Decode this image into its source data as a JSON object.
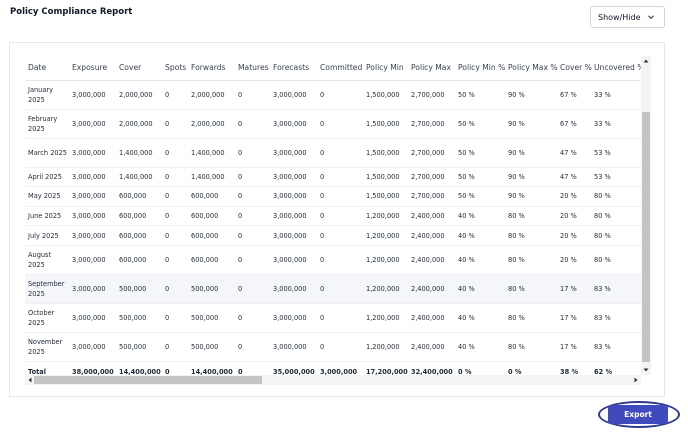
{
  "page": {
    "title": "Policy Compliance Report"
  },
  "controls": {
    "show_hide_label": "Show/Hide",
    "export_label": "Export"
  },
  "table": {
    "columns": [
      "Date",
      "Exposure",
      "Cover",
      "Spots",
      "Forwards",
      "Matures",
      "Forecasts",
      "Committed",
      "Policy Min",
      "Policy Max",
      "Policy Min %",
      "Policy Max %",
      "Cover %",
      "Uncovered %"
    ],
    "rows": [
      [
        "January 2025",
        "3,000,000",
        "2,000,000",
        "0",
        "2,000,000",
        "0",
        "3,000,000",
        "0",
        "1,500,000",
        "2,700,000",
        "50 %",
        "90 %",
        "67 %",
        "33 %"
      ],
      [
        "February 2025",
        "3,000,000",
        "2,000,000",
        "0",
        "2,000,000",
        "0",
        "3,000,000",
        "0",
        "1,500,000",
        "2,700,000",
        "50 %",
        "90 %",
        "67 %",
        "33 %"
      ],
      [
        "March 2025",
        "3,000,000",
        "1,400,000",
        "0",
        "1,400,000",
        "0",
        "3,000,000",
        "0",
        "1,500,000",
        "2,700,000",
        "50 %",
        "90 %",
        "47 %",
        "53 %"
      ],
      [
        "April 2025",
        "3,000,000",
        "1,400,000",
        "0",
        "1,400,000",
        "0",
        "3,000,000",
        "0",
        "1,500,000",
        "2,700,000",
        "50 %",
        "90 %",
        "47 %",
        "53 %"
      ],
      [
        "May 2025",
        "3,000,000",
        "600,000",
        "0",
        "600,000",
        "0",
        "3,000,000",
        "0",
        "1,500,000",
        "2,700,000",
        "50 %",
        "90 %",
        "20 %",
        "80 %"
      ],
      [
        "June 2025",
        "3,000,000",
        "600,000",
        "0",
        "600,000",
        "0",
        "3,000,000",
        "0",
        "1,200,000",
        "2,400,000",
        "40 %",
        "80 %",
        "20 %",
        "80 %"
      ],
      [
        "July 2025",
        "3,000,000",
        "600,000",
        "0",
        "600,000",
        "0",
        "3,000,000",
        "0",
        "1,200,000",
        "2,400,000",
        "40 %",
        "80 %",
        "20 %",
        "80 %"
      ],
      [
        "August 2025",
        "3,000,000",
        "600,000",
        "0",
        "600,000",
        "0",
        "3,000,000",
        "0",
        "1,200,000",
        "2,400,000",
        "40 %",
        "80 %",
        "20 %",
        "80 %"
      ],
      [
        "September 2025",
        "3,000,000",
        "500,000",
        "0",
        "500,000",
        "0",
        "3,000,000",
        "0",
        "1,200,000",
        "2,400,000",
        "40 %",
        "80 %",
        "17 %",
        "83 %"
      ],
      [
        "October 2025",
        "3,000,000",
        "500,000",
        "0",
        "500,000",
        "0",
        "3,000,000",
        "0",
        "1,200,000",
        "2,400,000",
        "40 %",
        "80 %",
        "17 %",
        "83 %"
      ],
      [
        "November 2025",
        "3,000,000",
        "500,000",
        "0",
        "500,000",
        "0",
        "3,000,000",
        "0",
        "1,200,000",
        "2,400,000",
        "40 %",
        "80 %",
        "17 %",
        "83 %"
      ]
    ],
    "total": [
      "Total",
      "38,000,000",
      "14,400,000",
      "0",
      "14,400,000",
      "0",
      "35,000,000",
      "3,000,000",
      "17,200,000",
      "32,400,000",
      "0 %",
      "0 %",
      "38 %",
      "62 %"
    ]
  },
  "icons": {
    "dropdown": "chevron-down-icon",
    "scroll_up": "arrow-up-icon",
    "scroll_down": "arrow-down-icon",
    "scroll_left": "arrow-left-icon",
    "scroll_right": "arrow-right-icon"
  },
  "colors": {
    "accent": "#3f4bbd",
    "ring": "#2d3a8c"
  }
}
